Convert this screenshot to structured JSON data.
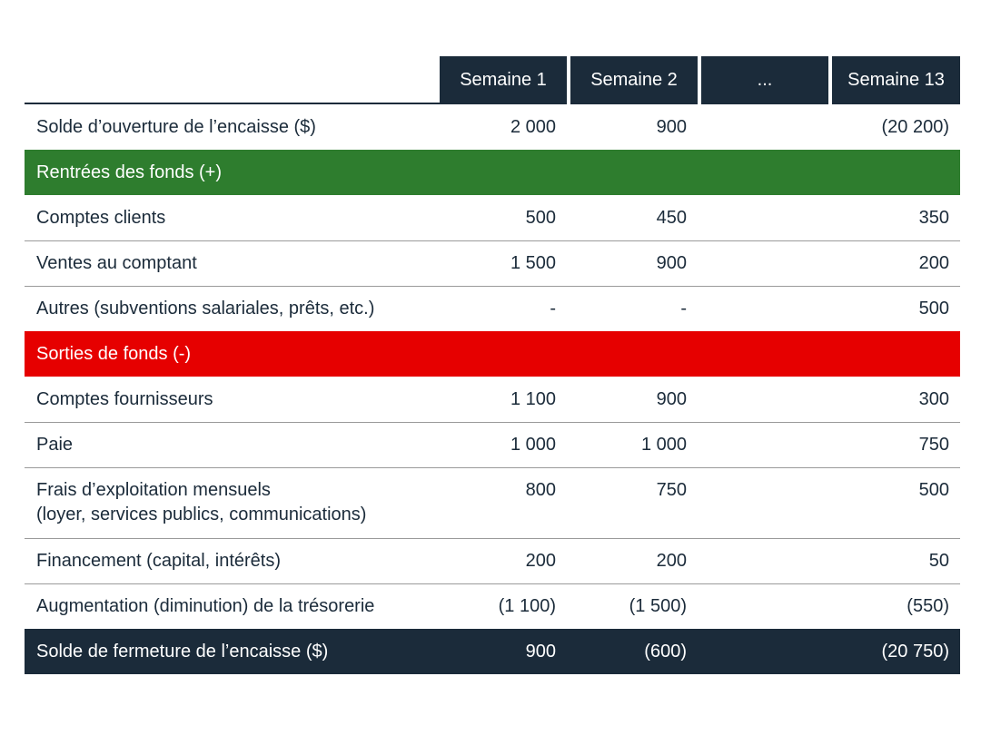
{
  "table": {
    "columns": [
      "Semaine 1",
      "Semaine 2",
      "...",
      "Semaine 13"
    ],
    "rows": [
      {
        "label": "Solde d’ouverture de l’encaisse ($)",
        "values": [
          "2 000",
          "900",
          null,
          "(20 200)"
        ]
      },
      {
        "section": "Rentrées des fonds (+)",
        "color": "#2e7d2e"
      },
      {
        "label": "Comptes clients",
        "values": [
          "500",
          "450",
          null,
          "350"
        ]
      },
      {
        "label": "Ventes au comptant",
        "values": [
          "1 500",
          "900",
          null,
          "200"
        ]
      },
      {
        "label": "Autres (subventions salariales, prêts, etc.)",
        "values": [
          "-",
          "-",
          null,
          "500"
        ]
      },
      {
        "section": "Sorties de fonds (-)",
        "color": "#e60000"
      },
      {
        "label": "Comptes fournisseurs",
        "values": [
          "1 100",
          "900",
          null,
          "300"
        ]
      },
      {
        "label": "Paie",
        "values": [
          "1 000",
          "1 000",
          null,
          "750"
        ]
      },
      {
        "lines": [
          "Frais d’exploitation mensuels",
          "(loyer, services publics, communications)"
        ],
        "values": [
          "800",
          "750",
          null,
          "500"
        ]
      },
      {
        "label": "Financement (capital, intérêts)",
        "values": [
          "200",
          "200",
          null,
          "50"
        ]
      },
      {
        "label": "Augmentation (diminution) de la trésorerie",
        "values": [
          "(1 100)",
          "(1 500)",
          null,
          "(550)"
        ]
      },
      {
        "total": "Solde de fermeture de l’encaisse ($)",
        "values": [
          "900",
          "(600)",
          null,
          "(20 750)"
        ],
        "color": "#1b2b3a"
      }
    ],
    "header_color": "#1b2b3a"
  }
}
